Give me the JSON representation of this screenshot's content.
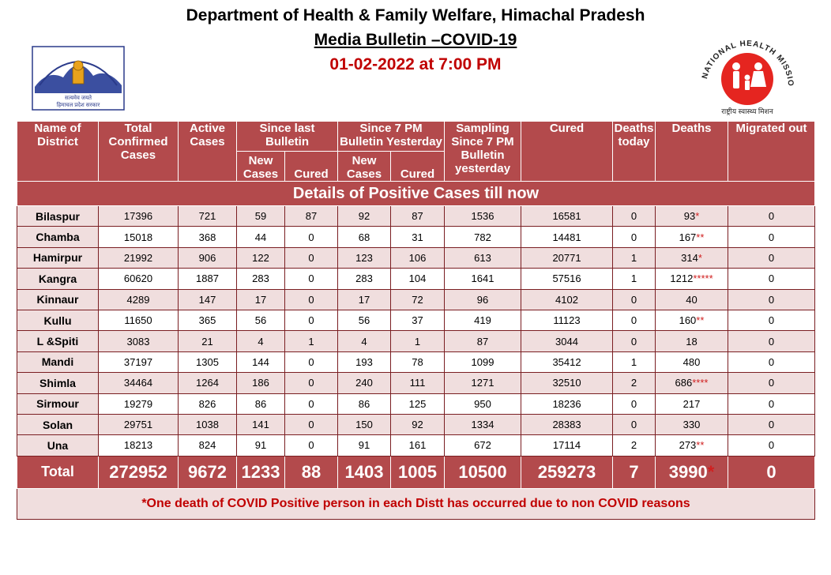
{
  "header": {
    "title": "Department of Health & Family Welfare, Himachal Pradesh",
    "subtitle": "Media Bulletin –COVID-19",
    "date": "01-02-2022 at 7:00 PM"
  },
  "logos": {
    "left_text_line1": "सत्यमेव जयते",
    "left_text_line2": "हिमाचल प्रदेश सरकार",
    "right_ring_text": "NATIONAL HEALTH MISSION",
    "right_bottom_text": "राष्ट्रीय स्वास्थ्य मिशन"
  },
  "table": {
    "banner": "Details of Positive Cases till now",
    "headers": {
      "district": "Name of District",
      "total": "Total Confirmed Cases",
      "active": "Active Cases",
      "since_last": "Since last Bulletin",
      "since_7pm": "Since 7 PM Bulletin Yesterday",
      "sampling": "Sampling Since 7 PM Bulletin yesterday",
      "cured": "Cured",
      "deaths_today": "Deaths today",
      "deaths": "Deaths",
      "migrated": "Migrated out",
      "new_cases": "New Cases",
      "cured_sub": "Cured"
    },
    "rows": [
      {
        "district": "Bilaspur",
        "total": "17396",
        "active": "721",
        "sl_new": "59",
        "sl_cured": "87",
        "s7_new": "92",
        "s7_cured": "87",
        "sampling": "1536",
        "cured": "16581",
        "deaths_today": "0",
        "deaths": "93",
        "deaths_star": "*",
        "migrated": "0"
      },
      {
        "district": "Chamba",
        "total": "15018",
        "active": "368",
        "sl_new": "44",
        "sl_cured": "0",
        "s7_new": "68",
        "s7_cured": "31",
        "sampling": "782",
        "cured": "14481",
        "deaths_today": "0",
        "deaths": "167",
        "deaths_star": "**",
        "migrated": "0"
      },
      {
        "district": "Hamirpur",
        "total": "21992",
        "active": "906",
        "sl_new": "122",
        "sl_cured": "0",
        "s7_new": "123",
        "s7_cured": "106",
        "sampling": "613",
        "cured": "20771",
        "deaths_today": "1",
        "deaths": "314",
        "deaths_star": "*",
        "migrated": "0"
      },
      {
        "district": "Kangra",
        "total": "60620",
        "active": "1887",
        "sl_new": "283",
        "sl_cured": "0",
        "s7_new": "283",
        "s7_cured": "104",
        "sampling": "1641",
        "cured": "57516",
        "deaths_today": "1",
        "deaths": "1212",
        "deaths_star": "*****",
        "migrated": "0"
      },
      {
        "district": "Kinnaur",
        "total": "4289",
        "active": "147",
        "sl_new": "17",
        "sl_cured": "0",
        "s7_new": "17",
        "s7_cured": "72",
        "sampling": "96",
        "cured": "4102",
        "deaths_today": "0",
        "deaths": "40",
        "deaths_star": "",
        "migrated": "0"
      },
      {
        "district": "Kullu",
        "total": "11650",
        "active": "365",
        "sl_new": "56",
        "sl_cured": "0",
        "s7_new": "56",
        "s7_cured": "37",
        "sampling": "419",
        "cured": "11123",
        "deaths_today": "0",
        "deaths": "160",
        "deaths_star": "**",
        "migrated": "0"
      },
      {
        "district": "L &Spiti",
        "total": "3083",
        "active": "21",
        "sl_new": "4",
        "sl_cured": "1",
        "s7_new": "4",
        "s7_cured": "1",
        "sampling": "87",
        "cured": "3044",
        "deaths_today": "0",
        "deaths": "18",
        "deaths_star": "",
        "migrated": "0"
      },
      {
        "district": "Mandi",
        "total": "37197",
        "active": "1305",
        "sl_new": "144",
        "sl_cured": "0",
        "s7_new": "193",
        "s7_cured": "78",
        "sampling": "1099",
        "cured": "35412",
        "deaths_today": "1",
        "deaths": "480",
        "deaths_star": "",
        "migrated": "0"
      },
      {
        "district": "Shimla",
        "total": "34464",
        "active": "1264",
        "sl_new": "186",
        "sl_cured": "0",
        "s7_new": "240",
        "s7_cured": "111",
        "sampling": "1271",
        "cured": "32510",
        "deaths_today": "2",
        "deaths": "686",
        "deaths_star": "****",
        "migrated": "0"
      },
      {
        "district": "Sirmour",
        "total": "19279",
        "active": "826",
        "sl_new": "86",
        "sl_cured": "0",
        "s7_new": "86",
        "s7_cured": "125",
        "sampling": "950",
        "cured": "18236",
        "deaths_today": "0",
        "deaths": "217",
        "deaths_star": "",
        "migrated": "0"
      },
      {
        "district": "Solan",
        "total": "29751",
        "active": "1038",
        "sl_new": "141",
        "sl_cured": "0",
        "s7_new": "150",
        "s7_cured": "92",
        "sampling": "1334",
        "cured": "28383",
        "deaths_today": "0",
        "deaths": "330",
        "deaths_star": "",
        "migrated": "0"
      },
      {
        "district": "Una",
        "total": "18213",
        "active": "824",
        "sl_new": "91",
        "sl_cured": "0",
        "s7_new": "91",
        "s7_cured": "161",
        "sampling": "672",
        "cured": "17114",
        "deaths_today": "2",
        "deaths": "273",
        "deaths_star": "**",
        "migrated": "0"
      }
    ],
    "total": {
      "label": "Total",
      "total": "272952",
      "active": "9672",
      "sl_new": "1233",
      "sl_cured": "88",
      "s7_new": "1403",
      "s7_cured": "1005",
      "sampling": "10500",
      "cured": "259273",
      "deaths_today": "7",
      "deaths": "3990",
      "deaths_star": "*",
      "migrated": "0"
    },
    "footnote": "*One death of COVID Positive person in each Distt has occurred due to non COVID reasons"
  },
  "colors": {
    "header_bg": "#b34a4c",
    "row_shade": "#f0dede",
    "date_red": "#c00000"
  }
}
